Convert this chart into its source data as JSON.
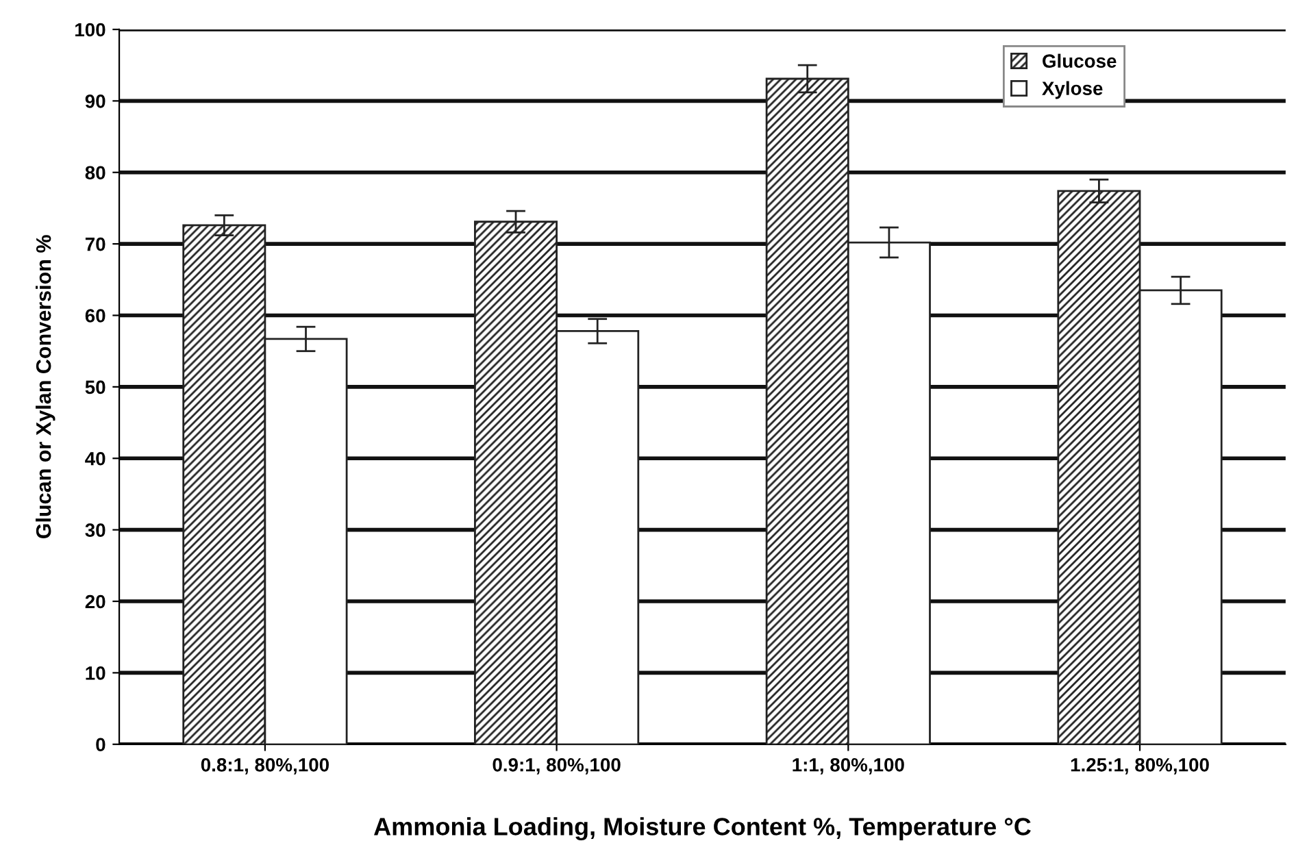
{
  "chart_data": {
    "type": "bar",
    "xlabel": "Ammonia Loading, Moisture Content %, Temperature °C",
    "ylabel": "Glucan or Xylan Conversion %",
    "categories": [
      "0.8:1, 80%,100",
      "0.9:1, 80%,100",
      "1:1, 80%,100",
      "1.25:1, 80%,100"
    ],
    "series": [
      {
        "name": "Glucose",
        "color": "#222222",
        "values": [
          72.6,
          73.1,
          93.1,
          77.4
        ],
        "errors": [
          1.4,
          1.5,
          1.9,
          1.6
        ]
      },
      {
        "name": "Xylose",
        "color": "#ffffff",
        "values": [
          56.7,
          57.8,
          70.2,
          63.5
        ],
        "errors": [
          1.7,
          1.7,
          2.1,
          1.9
        ]
      }
    ],
    "ylim": [
      0,
      100
    ],
    "yticks": [
      0,
      10,
      20,
      30,
      40,
      50,
      60,
      70,
      80,
      90,
      100
    ],
    "grid": "y",
    "legend": "top right"
  }
}
